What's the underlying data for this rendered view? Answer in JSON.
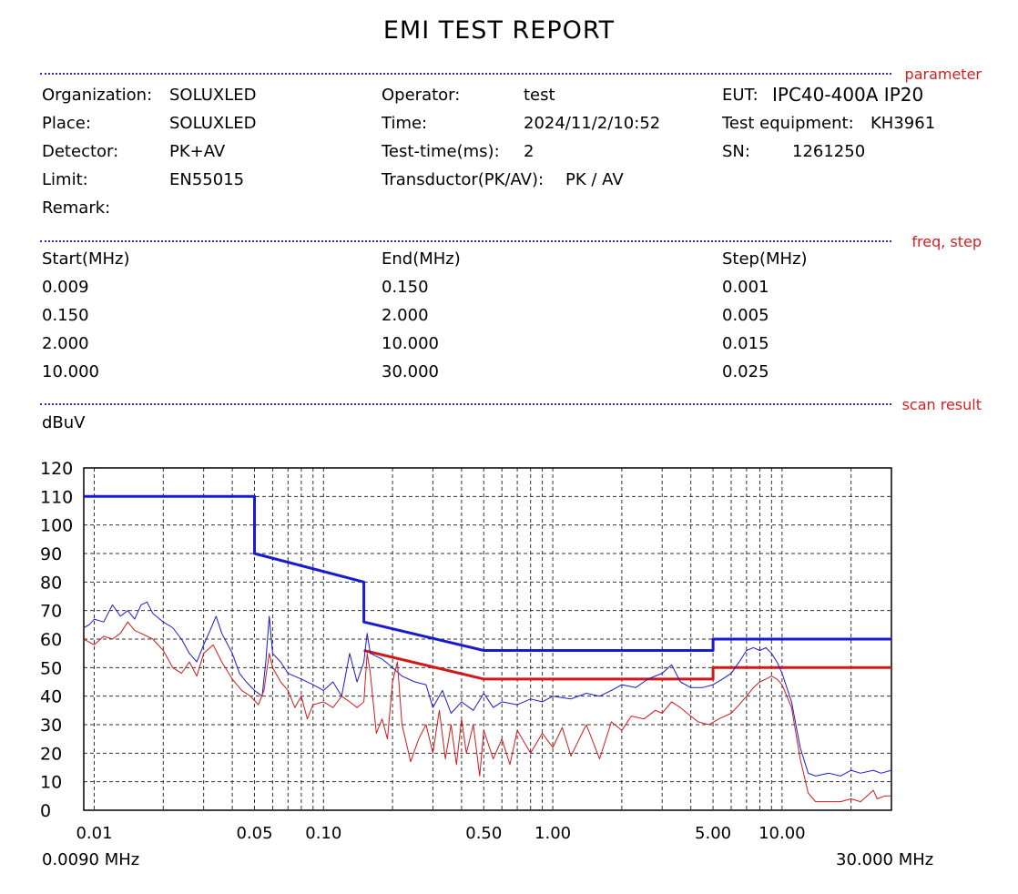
{
  "header": {
    "title": "EMI TEST REPORT"
  },
  "sections": {
    "parameter": "parameter",
    "freq_step": "freq, step",
    "scan_result": "scan result"
  },
  "params": {
    "organization_label": "Organization:",
    "organization": "SOLUXLED",
    "place_label": "Place:",
    "place": "SOLUXLED",
    "detector_label": "Detector:",
    "detector": "PK+AV",
    "limit_label": "Limit:",
    "limit": "EN55015",
    "remark_label": "Remark:",
    "operator_label": "Operator:",
    "operator": "test",
    "time_label": "Time:",
    "time": "2024/11/2/10:52",
    "testtime_label": "Test-time(ms):",
    "testtime": "2",
    "transducer_label": "Transductor(PK/AV):",
    "transducer": "PK  /  AV",
    "eut_label": "EUT:",
    "eut": "IPC40-400A IP20",
    "equipment_label": "Test equipment:",
    "equipment": "KH3961",
    "sn_label": "SN:",
    "sn": "1261250"
  },
  "freq_table": {
    "headers": [
      "Start(MHz)",
      "End(MHz)",
      "Step(MHz)"
    ],
    "rows": [
      [
        "0.009",
        "0.150",
        "0.001"
      ],
      [
        "0.150",
        "2.000",
        "0.005"
      ],
      [
        "2.000",
        "10.000",
        "0.015"
      ],
      [
        "10.000",
        "30.000",
        "0.025"
      ]
    ]
  },
  "chart_data": {
    "type": "line",
    "ylabel": "dBuV",
    "xscale": "log",
    "xlim": [
      0.009,
      30
    ],
    "ylim": [
      0,
      120
    ],
    "yticks": [
      0,
      10,
      20,
      30,
      40,
      50,
      60,
      70,
      80,
      90,
      100,
      110,
      120
    ],
    "xticks": [
      {
        "value": 0.01,
        "label": "0.01"
      },
      {
        "value": 0.05,
        "label": "0.05"
      },
      {
        "value": 0.1,
        "label": "0.10"
      },
      {
        "value": 0.5,
        "label": "0.50"
      },
      {
        "value": 1,
        "label": "1.00"
      },
      {
        "value": 5,
        "label": "5.00"
      },
      {
        "value": 10,
        "label": "10.00"
      }
    ],
    "xmin_label": "0.0090 MHz",
    "xmax_label": "30.000 MHz",
    "grid": true,
    "colors": {
      "pk": "#1a1ad0",
      "av": "#d01a1a"
    },
    "series": [
      {
        "id": "pk-limit",
        "color": "#1a1ad0",
        "width": 3,
        "points": [
          [
            0.009,
            110
          ],
          [
            0.05,
            110
          ],
          [
            0.05,
            90
          ],
          [
            0.15,
            80
          ],
          [
            0.15,
            66
          ],
          [
            0.5,
            56
          ],
          [
            5,
            56
          ],
          [
            5,
            60
          ],
          [
            30,
            60
          ]
        ]
      },
      {
        "id": "av-limit",
        "color": "#d01a1a",
        "width": 3,
        "points": [
          [
            0.15,
            56
          ],
          [
            0.5,
            46
          ],
          [
            5,
            46
          ],
          [
            5,
            50
          ],
          [
            30,
            50
          ]
        ]
      },
      {
        "id": "pk-scan",
        "color": "#1a1ad0",
        "width": 1,
        "points": [
          [
            0.009,
            64
          ],
          [
            0.0095,
            65
          ],
          [
            0.01,
            67
          ],
          [
            0.011,
            66
          ],
          [
            0.012,
            72
          ],
          [
            0.013,
            68
          ],
          [
            0.014,
            70
          ],
          [
            0.015,
            67
          ],
          [
            0.016,
            72
          ],
          [
            0.017,
            73
          ],
          [
            0.018,
            69
          ],
          [
            0.02,
            66
          ],
          [
            0.022,
            64
          ],
          [
            0.024,
            60
          ],
          [
            0.026,
            55
          ],
          [
            0.028,
            52
          ],
          [
            0.03,
            58
          ],
          [
            0.032,
            63
          ],
          [
            0.034,
            68
          ],
          [
            0.036,
            62
          ],
          [
            0.04,
            55
          ],
          [
            0.043,
            48
          ],
          [
            0.046,
            45
          ],
          [
            0.05,
            42
          ],
          [
            0.054,
            40
          ],
          [
            0.056,
            52
          ],
          [
            0.058,
            68
          ],
          [
            0.06,
            55
          ],
          [
            0.065,
            52
          ],
          [
            0.07,
            48
          ],
          [
            0.08,
            46
          ],
          [
            0.09,
            44
          ],
          [
            0.1,
            42
          ],
          [
            0.11,
            45
          ],
          [
            0.12,
            40
          ],
          [
            0.13,
            55
          ],
          [
            0.14,
            45
          ],
          [
            0.15,
            52
          ],
          [
            0.155,
            62
          ],
          [
            0.16,
            55
          ],
          [
            0.18,
            53
          ],
          [
            0.2,
            50
          ],
          [
            0.22,
            47
          ],
          [
            0.25,
            45
          ],
          [
            0.28,
            44
          ],
          [
            0.3,
            36
          ],
          [
            0.33,
            42
          ],
          [
            0.36,
            34
          ],
          [
            0.4,
            38
          ],
          [
            0.45,
            35
          ],
          [
            0.5,
            41
          ],
          [
            0.55,
            36
          ],
          [
            0.6,
            38
          ],
          [
            0.7,
            37
          ],
          [
            0.8,
            39
          ],
          [
            0.9,
            38
          ],
          [
            1,
            40
          ],
          [
            1.2,
            39
          ],
          [
            1.4,
            41
          ],
          [
            1.6,
            40
          ],
          [
            1.8,
            42
          ],
          [
            2,
            44
          ],
          [
            2.3,
            43
          ],
          [
            2.6,
            46
          ],
          [
            3,
            48
          ],
          [
            3.3,
            51
          ],
          [
            3.6,
            45
          ],
          [
            4,
            43
          ],
          [
            4.5,
            43
          ],
          [
            5,
            44
          ],
          [
            5.5,
            46
          ],
          [
            6,
            48
          ],
          [
            6.5,
            52
          ],
          [
            7,
            56
          ],
          [
            7.5,
            57
          ],
          [
            8,
            56
          ],
          [
            8.5,
            57
          ],
          [
            9,
            55
          ],
          [
            9.5,
            52
          ],
          [
            10,
            48
          ],
          [
            11,
            38
          ],
          [
            12,
            22
          ],
          [
            13,
            13
          ],
          [
            14,
            12
          ],
          [
            16,
            13
          ],
          [
            18,
            12
          ],
          [
            20,
            14
          ],
          [
            22,
            13
          ],
          [
            25,
            14
          ],
          [
            27,
            13
          ],
          [
            30,
            14
          ]
        ]
      },
      {
        "id": "av-scan",
        "color": "#d01a1a",
        "width": 1,
        "points": [
          [
            0.009,
            60
          ],
          [
            0.01,
            58
          ],
          [
            0.011,
            61
          ],
          [
            0.012,
            60
          ],
          [
            0.013,
            62
          ],
          [
            0.014,
            66
          ],
          [
            0.015,
            63
          ],
          [
            0.016,
            62
          ],
          [
            0.018,
            60
          ],
          [
            0.02,
            56
          ],
          [
            0.022,
            50
          ],
          [
            0.024,
            48
          ],
          [
            0.026,
            52
          ],
          [
            0.028,
            47
          ],
          [
            0.03,
            55
          ],
          [
            0.033,
            58
          ],
          [
            0.036,
            52
          ],
          [
            0.04,
            46
          ],
          [
            0.044,
            42
          ],
          [
            0.048,
            40
          ],
          [
            0.052,
            37
          ],
          [
            0.055,
            42
          ],
          [
            0.058,
            55
          ],
          [
            0.06,
            50
          ],
          [
            0.065,
            45
          ],
          [
            0.07,
            42
          ],
          [
            0.075,
            36
          ],
          [
            0.08,
            40
          ],
          [
            0.085,
            32
          ],
          [
            0.09,
            37
          ],
          [
            0.1,
            38
          ],
          [
            0.11,
            36
          ],
          [
            0.12,
            40
          ],
          [
            0.13,
            38
          ],
          [
            0.14,
            36
          ],
          [
            0.15,
            38
          ],
          [
            0.155,
            55
          ],
          [
            0.16,
            48
          ],
          [
            0.17,
            27
          ],
          [
            0.18,
            32
          ],
          [
            0.19,
            25
          ],
          [
            0.2,
            45
          ],
          [
            0.21,
            52
          ],
          [
            0.22,
            30
          ],
          [
            0.24,
            17
          ],
          [
            0.26,
            25
          ],
          [
            0.28,
            30
          ],
          [
            0.3,
            20
          ],
          [
            0.32,
            35
          ],
          [
            0.34,
            18
          ],
          [
            0.36,
            30
          ],
          [
            0.38,
            16
          ],
          [
            0.4,
            32
          ],
          [
            0.42,
            20
          ],
          [
            0.45,
            30
          ],
          [
            0.48,
            12
          ],
          [
            0.5,
            28
          ],
          [
            0.55,
            18
          ],
          [
            0.6,
            25
          ],
          [
            0.65,
            16
          ],
          [
            0.7,
            28
          ],
          [
            0.8,
            20
          ],
          [
            0.9,
            27
          ],
          [
            1,
            22
          ],
          [
            1.1,
            29
          ],
          [
            1.2,
            19
          ],
          [
            1.4,
            30
          ],
          [
            1.6,
            18
          ],
          [
            1.8,
            31
          ],
          [
            2,
            28
          ],
          [
            2.2,
            33
          ],
          [
            2.5,
            32
          ],
          [
            2.8,
            35
          ],
          [
            3,
            34
          ],
          [
            3.3,
            38
          ],
          [
            3.6,
            36
          ],
          [
            4,
            33
          ],
          [
            4.3,
            31
          ],
          [
            4.8,
            30
          ],
          [
            5.3,
            32
          ],
          [
            6,
            34
          ],
          [
            6.5,
            37
          ],
          [
            7,
            40
          ],
          [
            7.5,
            43
          ],
          [
            8,
            45
          ],
          [
            8.5,
            46
          ],
          [
            9,
            47
          ],
          [
            9.5,
            46
          ],
          [
            10,
            44
          ],
          [
            11,
            36
          ],
          [
            12,
            18
          ],
          [
            13,
            6
          ],
          [
            14,
            3
          ],
          [
            16,
            3
          ],
          [
            18,
            3
          ],
          [
            20,
            4
          ],
          [
            22,
            3
          ],
          [
            25,
            7
          ],
          [
            26,
            4
          ],
          [
            28,
            5
          ],
          [
            30,
            5
          ]
        ]
      }
    ]
  }
}
